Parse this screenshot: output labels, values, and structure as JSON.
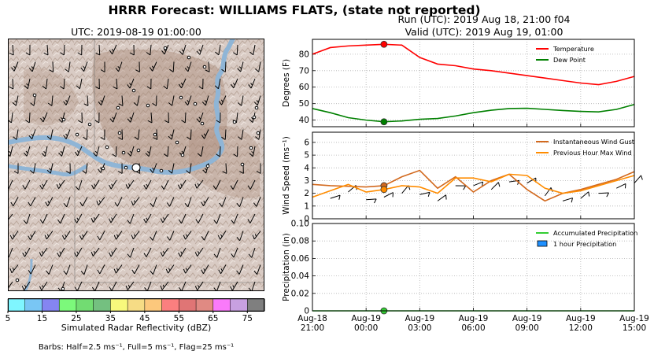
{
  "header": {
    "main_title": "HRRR Forecast: WILLIAMS FLATS, (state not reported)",
    "run_line": "Run (UTC): 2019 Aug 18, 21:00 f04",
    "valid_line": "Valid (UTC): 2019 Aug 19, 01:00"
  },
  "map": {
    "title": "UTC: 2019-08-19 01:00:00",
    "colorbar": {
      "label": "Simulated Radar Reflectivity (dBZ)",
      "ticks": [
        "5",
        "15",
        "25",
        "35",
        "45",
        "55",
        "65",
        "75"
      ],
      "colors": [
        "#7ff6ff",
        "#79c6f4",
        "#8585f2",
        "#7cf97b",
        "#72dc72",
        "#74c080",
        "#f8f97c",
        "#f6dc85",
        "#fcc87c",
        "#fa7f7f",
        "#e07575",
        "#e08a83",
        "#fa7afa",
        "#c8a0e0",
        "#7f7f7f"
      ]
    },
    "barbs_note": "Barbs: Half=2.5 ms⁻¹, Full=5 ms⁻¹, Flag=25 ms⁻¹"
  },
  "chart_data": [
    {
      "type": "line",
      "x_ticks": [
        "Aug-18 21:00",
        "Aug-19 00:00",
        "Aug-19 03:00",
        "Aug-19 06:00",
        "Aug-19 09:00",
        "Aug-19 12:00",
        "Aug-19 15:00"
      ],
      "x_hours": [
        0,
        1,
        2,
        3,
        4,
        5,
        6,
        7,
        8,
        9,
        10,
        11,
        12,
        13,
        14,
        15,
        16,
        17,
        18
      ],
      "ylabel": "Degrees (F)",
      "ylim": [
        36,
        89
      ],
      "yticks": [
        40,
        50,
        60,
        70,
        80
      ],
      "grid": true,
      "legend": "top-right",
      "highlight_hour": 4,
      "series": [
        {
          "name": "Temperature",
          "color": "#ff0000",
          "values": [
            80,
            84,
            85,
            85.5,
            86,
            85.5,
            78,
            74,
            73,
            71,
            70,
            68.5,
            67,
            65.5,
            64,
            62.5,
            61.5,
            63.5,
            66.5
          ]
        },
        {
          "name": "Dew Point",
          "color": "#008000",
          "values": [
            47,
            44.5,
            41.5,
            40,
            39,
            39.5,
            40.5,
            41,
            42.5,
            44.5,
            46,
            47,
            47.2,
            46.5,
            45.8,
            45.3,
            45,
            46.5,
            49.5
          ]
        }
      ]
    },
    {
      "type": "line",
      "ylabel": "Wind Speed (ms⁻¹)",
      "ylim": [
        0,
        6.8
      ],
      "yticks": [
        0,
        1,
        2,
        3,
        4,
        5,
        6
      ],
      "grid": true,
      "legend": "top-right",
      "highlight_hour": 4,
      "series": [
        {
          "name": "Instantaneous Wind Gust",
          "color": "#d2691e",
          "values": [
            2.7,
            2.6,
            2.55,
            2.5,
            2.6,
            3.3,
            3.8,
            2.4,
            3.3,
            2.1,
            3.0,
            3.5,
            2.3,
            1.4,
            2.0,
            2.3,
            2.7,
            3.1,
            3.7
          ]
        },
        {
          "name": "Previous Hour Max Wind",
          "color": "#ff8c00",
          "values": [
            1.7,
            2.2,
            2.7,
            2.1,
            2.3,
            2.6,
            2.5,
            2.0,
            3.2,
            3.2,
            2.9,
            3.5,
            3.4,
            2.4,
            2.0,
            2.2,
            2.6,
            3.0,
            3.4
          ]
        }
      ]
    },
    {
      "type": "line",
      "ylabel": "Precipitation (in)",
      "ylim": [
        0,
        0.1
      ],
      "yticks": [
        0.0,
        0.02,
        0.04,
        0.06,
        0.08,
        0.1
      ],
      "grid": true,
      "legend": "top-right",
      "highlight_hour": 4,
      "series": [
        {
          "name": "Accumulated Precipitation",
          "color": "#32cd32",
          "values": [
            0,
            0,
            0,
            0,
            0,
            0,
            0,
            0,
            0,
            0,
            0,
            0,
            0,
            0,
            0,
            0,
            0,
            0,
            0
          ]
        },
        {
          "name": "1 hour Precipitation",
          "color": "#1e90ff",
          "values": [
            0,
            0,
            0,
            0,
            0,
            0,
            0,
            0,
            0,
            0,
            0,
            0,
            0,
            0,
            0,
            0,
            0,
            0,
            0
          ]
        }
      ]
    }
  ]
}
